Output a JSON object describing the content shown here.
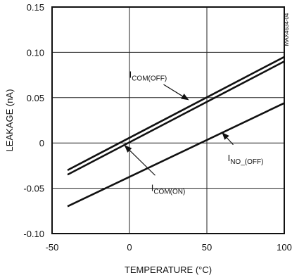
{
  "chart_data": {
    "type": "line",
    "figure_code": "MAX4634-04",
    "xlabel": "TEMPERATURE (°C)",
    "ylabel": "LEAKAGE (nA)",
    "xlim": [
      -50,
      100
    ],
    "ylim": [
      -0.1,
      0.15
    ],
    "x_ticks": [
      -50,
      0,
      50,
      100
    ],
    "x_tick_labels": [
      "-50",
      "0",
      "50",
      "100"
    ],
    "y_ticks": [
      0.15,
      0.1,
      0.05,
      0,
      -0.05,
      -0.1
    ],
    "y_tick_labels": [
      "0.15",
      "0.10",
      "0.05",
      "0",
      "-0.05",
      "-0.10"
    ],
    "grid": true,
    "series": [
      {
        "name_main": "I",
        "name_sub": "COM(OFF)",
        "x": [
          -40,
          100
        ],
        "y": [
          -0.03,
          0.095
        ]
      },
      {
        "name_main": "I",
        "name_sub": "COM(ON)",
        "x": [
          -40,
          100
        ],
        "y": [
          -0.035,
          0.09
        ]
      },
      {
        "name_main": "I",
        "name_sub": "NO_(OFF)",
        "x": [
          -40,
          100
        ],
        "y": [
          -0.07,
          0.044
        ]
      }
    ],
    "annotations": [
      {
        "series": 0,
        "text_x": 12,
        "text_y": 0.072,
        "arrow_to_x": 38,
        "arrow_to_y": 0.0477
      },
      {
        "series": 1,
        "text_x": 25,
        "text_y": -0.053,
        "arrow_to_x": -3,
        "arrow_to_y": -0.0029
      },
      {
        "series": 2,
        "text_x": 75,
        "text_y": -0.02,
        "arrow_to_x": 60,
        "arrow_to_y": 0.0112
      }
    ]
  }
}
